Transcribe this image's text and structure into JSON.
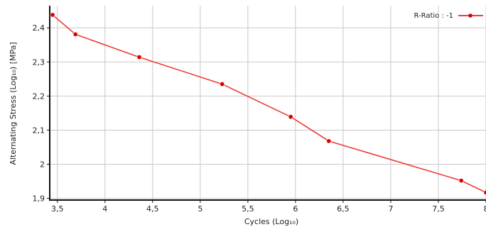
{
  "chart_data": {
    "type": "line",
    "title": "",
    "xlabel": "Cycles  (Log₁₀)",
    "ylabel": "Alternating Stress  (Log₁₀)  [MPa]",
    "xlim": [
      3.42,
      8.0
    ],
    "ylim": [
      1.895,
      2.465
    ],
    "x_ticks": [
      3.5,
      4,
      4.5,
      5,
      5.5,
      6,
      6.5,
      7,
      7.5,
      8
    ],
    "x_tick_labels": [
      "3,5",
      "4",
      "4,5",
      "5",
      "5,5",
      "6",
      "6,5",
      "7",
      "7,5",
      "8"
    ],
    "y_ticks": [
      1.9,
      2.0,
      2.1,
      2.2,
      2.3,
      2.4
    ],
    "y_tick_labels": [
      "1,9",
      "2",
      "2,1",
      "2,2",
      "2,3",
      "2,4"
    ],
    "grid": true,
    "legend_position": "top-right",
    "series": [
      {
        "name": "R-Ratio : -1",
        "color": "#ee3b3b",
        "marker_color": "#dd0000",
        "x": [
          3.45,
          3.69,
          4.36,
          5.23,
          5.95,
          6.35,
          7.74,
          8.0
        ],
        "y": [
          2.438,
          2.381,
          2.314,
          2.235,
          2.139,
          2.068,
          1.952,
          1.917
        ]
      }
    ]
  }
}
